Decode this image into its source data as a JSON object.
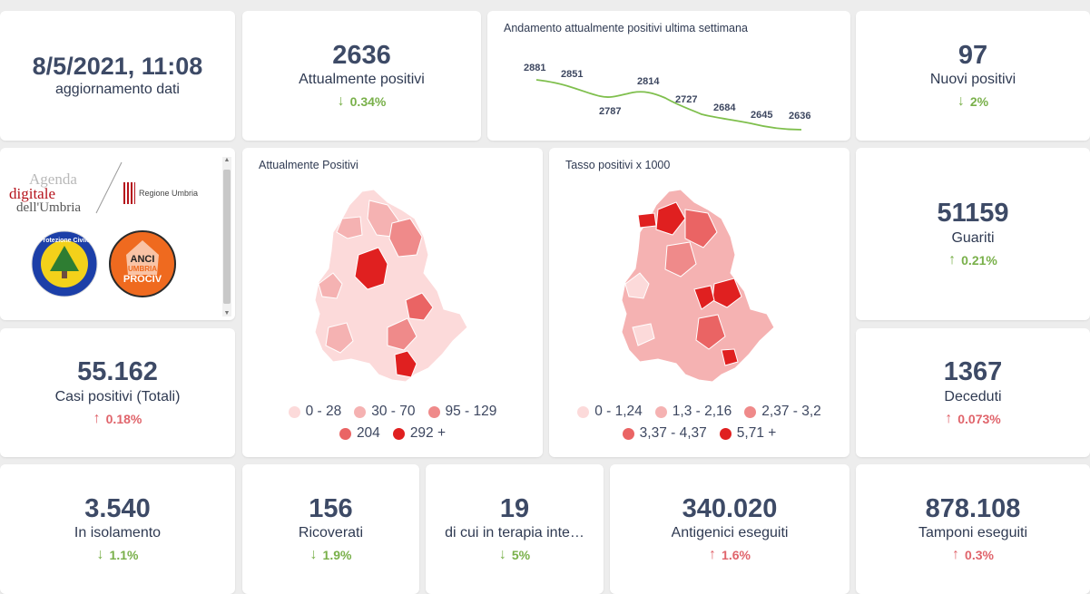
{
  "update": {
    "datetime": "8/5/2021, 11:08",
    "label": "aggiornamento dati"
  },
  "attualmente_positivi": {
    "value": "2636",
    "label": "Attualmente positivi",
    "delta": "0.34%",
    "direction": "down"
  },
  "trend": {
    "title": "Andamento attualmente positivi ultima settimana",
    "line_color": "#7fbf4d",
    "labels": [
      "2881",
      "2851",
      "2787",
      "2814",
      "2727",
      "2684",
      "2645",
      "2636"
    ]
  },
  "nuovi_positivi": {
    "value": "97",
    "label": "Nuovi positivi",
    "delta": "2%",
    "direction": "down"
  },
  "logos": {
    "agenda_line1": "Agenda",
    "agenda_line2": "digitale",
    "agenda_line3": "dell'Umbria",
    "regione": "Regione Umbria",
    "protezione_civile": "Protezione Civile",
    "anci_line1": "ANCI",
    "anci_line2": "UMBRIA",
    "anci_line3": "PROCIV"
  },
  "map_positivi": {
    "title": "Attualmente Positivi",
    "legend": [
      {
        "label": "0 - 28",
        "color": "#fcdada"
      },
      {
        "label": "30 - 70",
        "color": "#f5b2b2"
      },
      {
        "label": "95 - 129",
        "color": "#ef8a8a"
      },
      {
        "label": "204",
        "color": "#ea6464"
      },
      {
        "label": "292 +",
        "color": "#e02020"
      }
    ]
  },
  "map_tasso": {
    "title": "Tasso positivi x 1000",
    "legend": [
      {
        "label": "0 - 1,24",
        "color": "#fcdada"
      },
      {
        "label": "1,3 - 2,16",
        "color": "#f5b2b2"
      },
      {
        "label": "2,37 - 3,2",
        "color": "#ef8a8a"
      },
      {
        "label": "3,37 - 4,37",
        "color": "#ea6464"
      },
      {
        "label": "5,71 +",
        "color": "#e02020"
      }
    ]
  },
  "guariti": {
    "value": "51159",
    "label": "Guariti",
    "delta": "0.21%",
    "direction": "up"
  },
  "casi_totali": {
    "value": "55.162",
    "label": "Casi positivi (Totali)",
    "delta": "0.18%",
    "direction": "up"
  },
  "deceduti": {
    "value": "1367",
    "label": "Deceduti",
    "delta": "0.073%",
    "direction": "up"
  },
  "isolamento": {
    "value": "3.540",
    "label": "In isolamento",
    "delta": "1.1%",
    "direction": "down"
  },
  "ricoverati": {
    "value": "156",
    "label": "Ricoverati",
    "delta": "1.9%",
    "direction": "down"
  },
  "terapia": {
    "value": "19",
    "label": "di cui in terapia inte…",
    "delta": "5%",
    "direction": "down"
  },
  "antigenici": {
    "value": "340.020",
    "label": "Antigenici eseguiti",
    "delta": "1.6%",
    "direction": "up"
  },
  "tamponi": {
    "value": "878.108",
    "label": "Tamponi eseguiti",
    "delta": "0.3%",
    "direction": "up"
  }
}
